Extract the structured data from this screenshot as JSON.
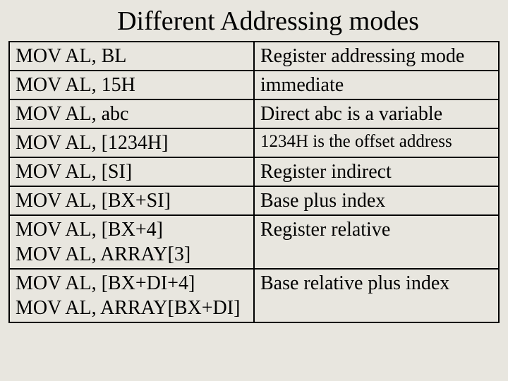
{
  "title": "Different Addressing modes",
  "rows": [
    {
      "instr": "MOV AL, BL",
      "desc": "Register addressing mode"
    },
    {
      "instr": "MOV AL, 15H",
      "desc": "immediate"
    },
    {
      "instr": "MOV AL, abc",
      "desc": "Direct abc is a variable"
    },
    {
      "instr": "MOV AL, [1234H]",
      "desc": "1234H is the offset address",
      "smaller": true
    },
    {
      "instr": "MOV AL, [SI]",
      "desc": "Register indirect"
    },
    {
      "instr": "MOV AL, [BX+SI]",
      "desc": "Base plus index"
    },
    {
      "instr": "MOV AL,  [BX+4]\nMOV AL, ARRAY[3]",
      "desc": "Register relative"
    },
    {
      "instr": "MOV AL, [BX+DI+4]\nMOV AL, ARRAY[BX+DI]",
      "desc": "Base relative plus index"
    }
  ]
}
